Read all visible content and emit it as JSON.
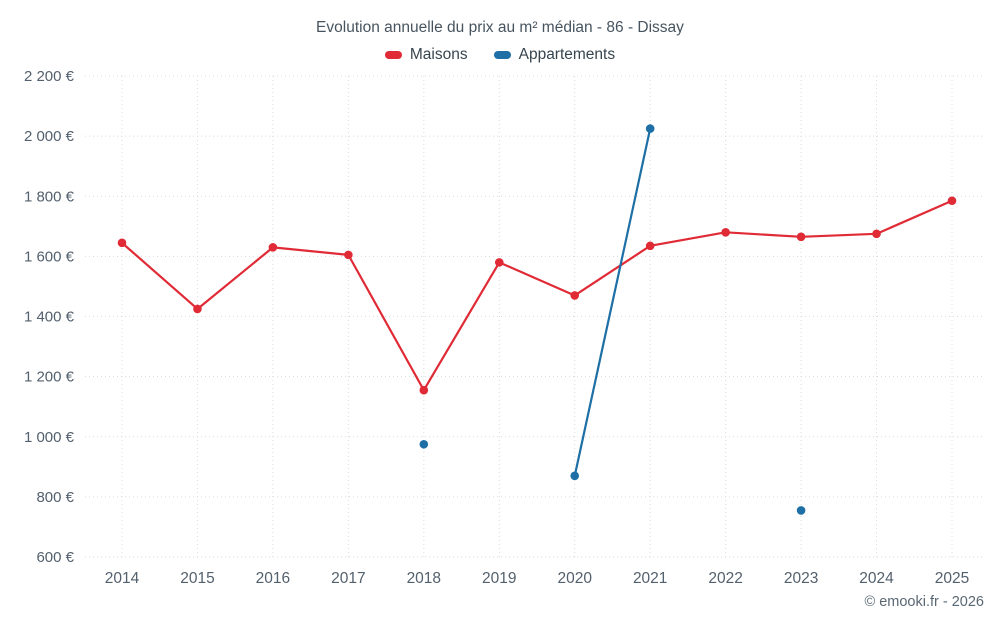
{
  "footer": "© emooki.fr - 2026",
  "chart_data": {
    "type": "line",
    "title": "Evolution annuelle du prix au m² médian - 86 - Dissay",
    "x": [
      2014,
      2015,
      2016,
      2017,
      2018,
      2019,
      2020,
      2021,
      2022,
      2023,
      2024,
      2025
    ],
    "series": [
      {
        "name": "Maisons",
        "color": "#e02b36",
        "values": [
          1645,
          1425,
          1630,
          1605,
          1155,
          1580,
          1470,
          1635,
          1680,
          1665,
          1675,
          1785
        ]
      },
      {
        "name": "Appartements",
        "color": "#1d6fa5",
        "values": [
          null,
          null,
          null,
          null,
          975,
          null,
          870,
          2025,
          null,
          755,
          null,
          null
        ]
      }
    ],
    "xlabel": "",
    "ylabel": "",
    "ylim": [
      600,
      2200
    ],
    "ytick_step": 200,
    "ytick_suffix": " €",
    "grid": true,
    "legend_position": "top"
  }
}
